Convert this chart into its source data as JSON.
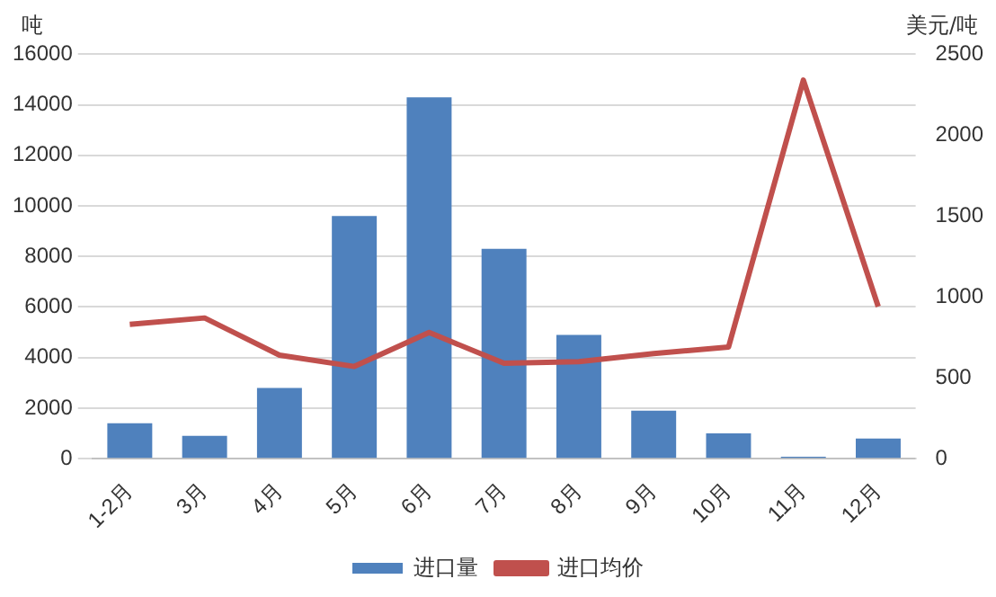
{
  "chart_data": {
    "type": "bar",
    "ylabel": "吨",
    "y2label": "美元/吨",
    "categories": [
      "1-2月",
      "3月",
      "4月",
      "5月",
      "6月",
      "7月",
      "8月",
      "9月",
      "10月",
      "11月",
      "12月"
    ],
    "series": [
      {
        "name": "进口量",
        "color": "#4f81bd",
        "values": [
          1400,
          900,
          2800,
          9600,
          14300,
          8300,
          4900,
          1900,
          1000,
          80,
          800
        ]
      },
      {
        "name": "进口均价",
        "type": "line",
        "axis": "y2",
        "color": "#c0504d",
        "values": [
          830,
          870,
          640,
          570,
          780,
          590,
          600,
          650,
          690,
          2340,
          940
        ]
      }
    ],
    "ylim": [
      0,
      16000
    ],
    "yticks": [
      0,
      2000,
      4000,
      6000,
      8000,
      10000,
      12000,
      14000,
      16000
    ],
    "y2lim": [
      0,
      2500
    ],
    "y2ticks": [
      0,
      500,
      1000,
      1500,
      2000,
      2500
    ],
    "grid": "y",
    "legend": "bottom",
    "marker": "none"
  }
}
